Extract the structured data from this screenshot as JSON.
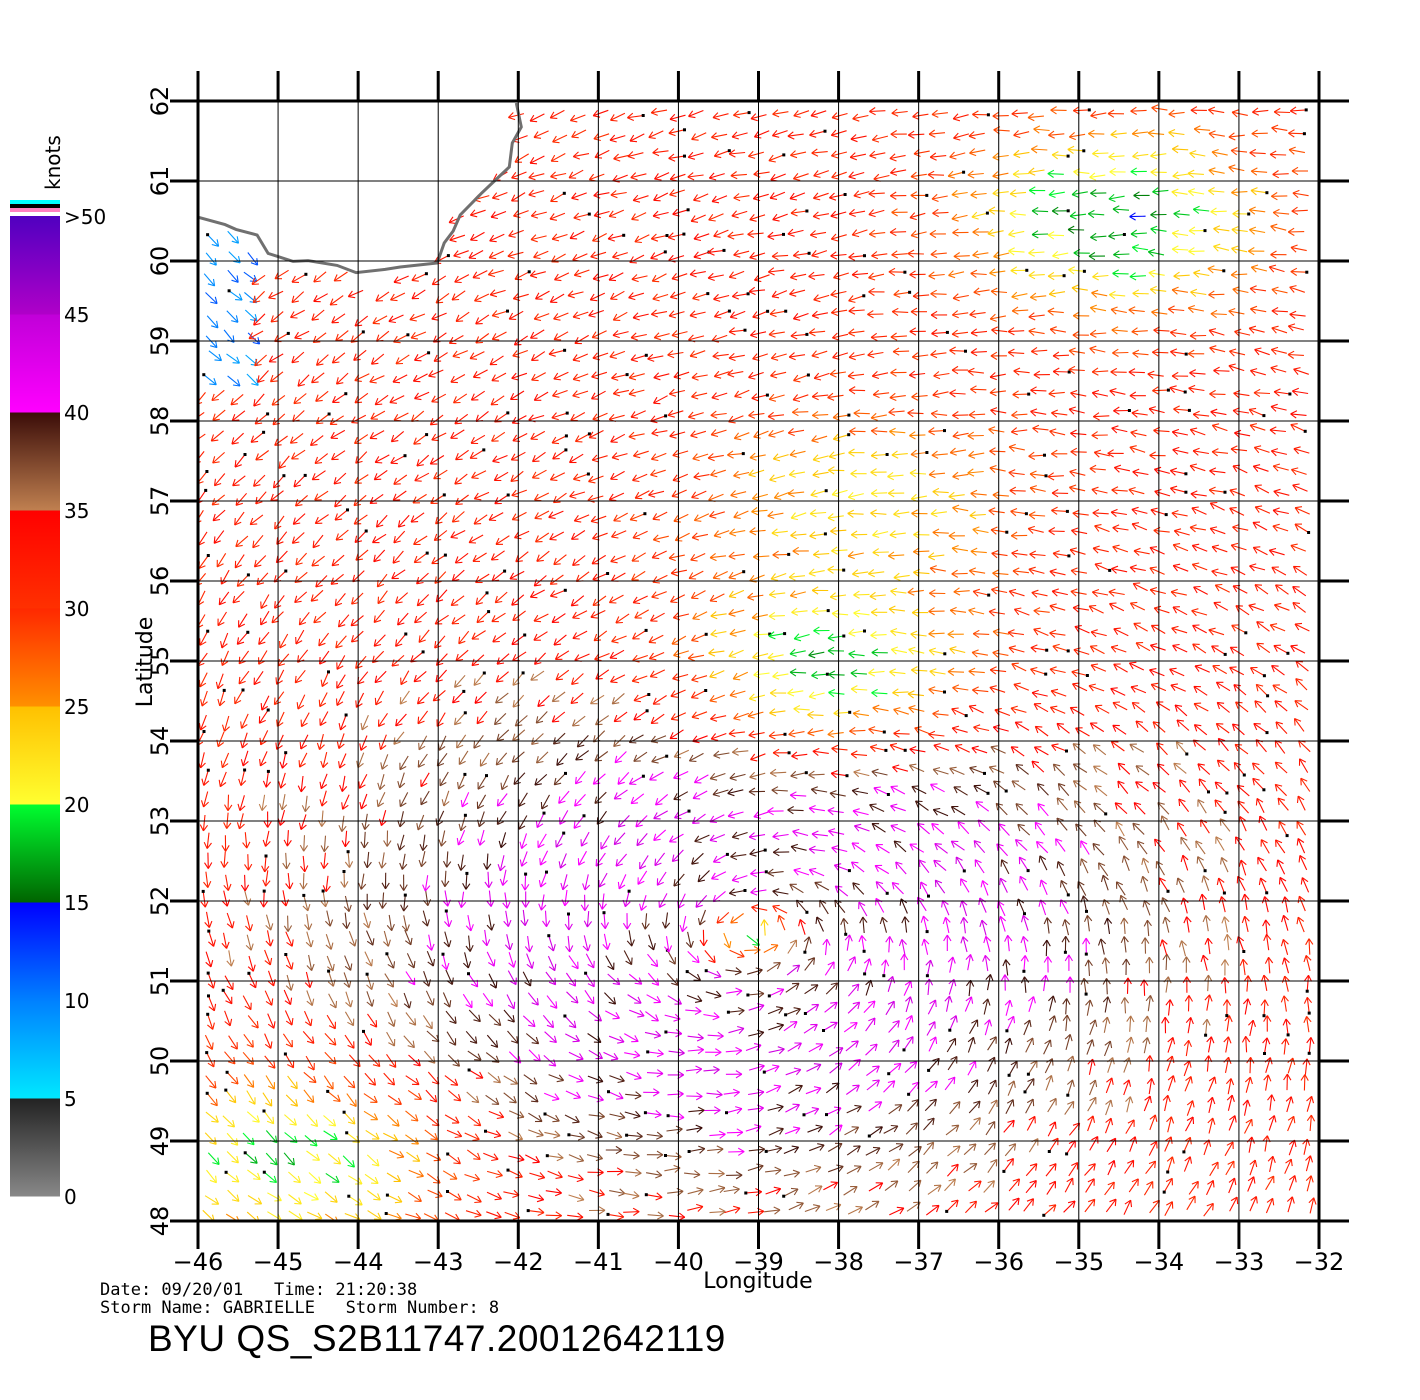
{
  "chart_data": {
    "type": "wind-vector-map",
    "xlabel": "Longitude",
    "ylabel": "Latitude",
    "xlim": [
      -46,
      -32
    ],
    "ylim": [
      48,
      62
    ],
    "x_ticks": [
      "−46",
      "−45",
      "−44",
      "−43",
      "−42",
      "−41",
      "−40",
      "−39",
      "−38",
      "−37",
      "−36",
      "−35",
      "−34",
      "−33",
      "−32"
    ],
    "y_ticks": [
      "48",
      "49",
      "50",
      "51",
      "52",
      "53",
      "54",
      "55",
      "56",
      "57",
      "58",
      "59",
      "60",
      "61",
      "62"
    ],
    "colorbar": {
      "unit": "knots",
      "labels": [
        "0",
        "5",
        "10",
        "15",
        "20",
        "25",
        "30",
        "35",
        "40",
        "45",
        ">50"
      ],
      "bands": [
        {
          "from": 0,
          "to": 5,
          "colors": [
            "#888888",
            "#222222"
          ]
        },
        {
          "from": 5,
          "to": 10,
          "colors": [
            "#00e8ff",
            "#0080ff"
          ]
        },
        {
          "from": 10,
          "to": 15,
          "colors": [
            "#0080ff",
            "#0000ff"
          ]
        },
        {
          "from": 15,
          "to": 20,
          "colors": [
            "#006400",
            "#00ff30"
          ]
        },
        {
          "from": 20,
          "to": 25,
          "colors": [
            "#ffff30",
            "#ffc000"
          ]
        },
        {
          "from": 25,
          "to": 30,
          "colors": [
            "#ff9000",
            "#ff2800"
          ]
        },
        {
          "from": 30,
          "to": 35,
          "colors": [
            "#ff3000",
            "#ff0000"
          ]
        },
        {
          "from": 35,
          "to": 40,
          "colors": [
            "#c08050",
            "#3a0c08"
          ]
        },
        {
          "from": 40,
          "to": 45,
          "colors": [
            "#ff00ff",
            "#c000d8"
          ]
        },
        {
          "from": 45,
          "to": 50,
          "colors": [
            "#b000c8",
            "#5000c0"
          ]
        }
      ]
    },
    "wind_field": {
      "storm_center": {
        "lon": -39.1,
        "lat": 51.6
      },
      "field_speed_knots": 32,
      "core_speed_knots": 42,
      "weak_zones": [
        {
          "lon": -38.0,
          "lat": 55.0,
          "speed_knots": 18
        },
        {
          "lon": -37.6,
          "lat": 57.0,
          "speed_knots": 22
        },
        {
          "lon": -34.5,
          "lat": 60.5,
          "speed_knots": 16
        },
        {
          "lon": -45.0,
          "lat": 48.8,
          "speed_knots": 19
        }
      ],
      "greenland_coast_winds_knots": 10
    },
    "coastline": "Greenland southern tip"
  },
  "info": {
    "date_line": "Date: 09/20/01   Time: 21:20:38",
    "storm_line": "Storm Name: GABRIELLE   Storm Number: 8",
    "product_id": "BYU  QS_S2B11747.20012642119"
  },
  "colors": {
    "coastline": "#707070",
    "grid": "#000000",
    "frame": "#000000"
  }
}
